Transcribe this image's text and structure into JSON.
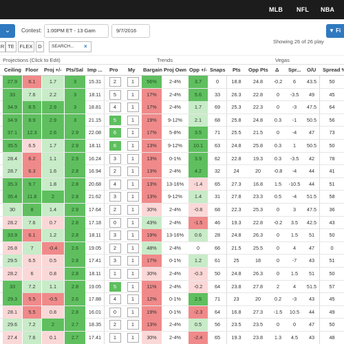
{
  "topnav": {
    "links": [
      "MLB",
      "NFL",
      "NBA"
    ]
  },
  "toolbar": {
    "contest_label": "Contest:",
    "contest_value": "1:00PM ET - 13 Gam",
    "date_value": "9/7/2016",
    "filter_label": "Fi"
  },
  "positions": [
    "R",
    "TE",
    "FLEX",
    "D"
  ],
  "search": {
    "placeholder": "SEARCH...",
    "clear": "×"
  },
  "showing_text": "Showing 26 of 26 play",
  "groups": {
    "projections": "Projections (Click to Edit)",
    "trends": "Trends",
    "vegas": "Vegas"
  },
  "columns": [
    "Ceiling",
    "Floor",
    "Proj +/-",
    "Pts/Sal",
    "Imp ...",
    "Pro",
    "My",
    "Bargain",
    "Proj Own",
    "Opp +/-",
    "Snaps",
    "Pts",
    "Opp Pts",
    "Δ",
    "Spr...",
    "O/U",
    "Spread %"
  ],
  "colors": {
    "green_dark": "#5fbf5f",
    "green_mid": "#8fd48f",
    "green_light": "#c8ebc8",
    "red_dark": "#f08a8a",
    "red_mid": "#f6b4b4",
    "red_light": "#fbd8d8",
    "accent_blue": "#2f79c0"
  },
  "rows": [
    {
      "ceil": "27.9",
      "floor": "6.1",
      "proj": "1.7",
      "ps": "3",
      "imp": "15.31",
      "pro": "2",
      "my": "1",
      "barg": "56%",
      "own": "2-4%",
      "opp": "3.7",
      "snaps": "0",
      "pts": "18.8",
      "oppp": "24.8",
      "d": "-0.2",
      "spr": "6",
      "ou": "43.5",
      "sp": "50",
      "c": [
        "g",
        "r",
        "lg",
        "g",
        "",
        "",
        "",
        "g",
        "",
        "g",
        "",
        "",
        "",
        "",
        "",
        "",
        ""
      ]
    },
    {
      "ceil": "33",
      "floor": "7.6",
      "proj": "2.2",
      "ps": "3",
      "imp": "18.11",
      "pro": "5",
      "my": "1",
      "barg": "17%",
      "own": "2-4%",
      "opp": "5.6",
      "snaps": "33",
      "pts": "26.3",
      "oppp": "22.8",
      "d": "0",
      "spr": "-3.5",
      "ou": "49",
      "sp": "45",
      "c": [
        "g",
        "lg",
        "lg",
        "g",
        "",
        "",
        "",
        "r",
        "",
        "g",
        "",
        "",
        "",
        "",
        "",
        "",
        ""
      ]
    },
    {
      "ceil": "34.9",
      "floor": "8.5",
      "proj": "2.9",
      "ps": "3",
      "imp": "18.81",
      "pro": "4",
      "my": "1",
      "barg": "17%",
      "own": "2-4%",
      "opp": "1.7",
      "snaps": "69",
      "pts": "25.3",
      "oppp": "22.3",
      "d": "0",
      "spr": "-3",
      "ou": "47.5",
      "sp": "64",
      "c": [
        "g",
        "g",
        "g",
        "g",
        "",
        "",
        "",
        "r",
        "",
        "lg",
        "",
        "",
        "",
        "",
        "",
        "",
        ""
      ]
    },
    {
      "ceil": "34.9",
      "floor": "8.9",
      "proj": "2.9",
      "ps": "3",
      "imp": "21.15",
      "pro": "5",
      "my": "1",
      "barg": "19%",
      "own": "9-12%",
      "opp": "2.1",
      "snaps": "68",
      "pts": "25.8",
      "oppp": "24.8",
      "d": "0.3",
      "spr": "-1",
      "ou": "50.5",
      "sp": "56",
      "c": [
        "g",
        "g",
        "g",
        "g",
        "",
        "g",
        "",
        "r",
        "",
        "lg",
        "",
        "",
        "",
        "",
        "",
        "",
        ""
      ]
    },
    {
      "ceil": "37.1",
      "floor": "12.3",
      "proj": "2.6",
      "ps": "2.9",
      "imp": "22.08",
      "pro": "6",
      "my": "1",
      "barg": "17%",
      "own": "5-8%",
      "opp": "3.5",
      "snaps": "71",
      "pts": "25.5",
      "oppp": "21.5",
      "d": "0",
      "spr": "-4",
      "ou": "47",
      "sp": "73",
      "c": [
        "g",
        "g",
        "g",
        "g",
        "",
        "g",
        "",
        "r",
        "",
        "g",
        "",
        "",
        "",
        "",
        "",
        "",
        ""
      ]
    },
    {
      "ceil": "35.5",
      "floor": "6.5",
      "proj": "1.7",
      "ps": "2.9",
      "imp": "18.11",
      "pro": "6",
      "my": "1",
      "barg": "13%",
      "own": "9-12%",
      "opp": "10.1",
      "snaps": "63",
      "pts": "24.8",
      "oppp": "25.8",
      "d": "0.3",
      "spr": "1",
      "ou": "50.5",
      "sp": "50",
      "c": [
        "g",
        "lr",
        "lg",
        "g",
        "",
        "g",
        "",
        "r",
        "",
        "g",
        "",
        "",
        "",
        "",
        "",
        "",
        ""
      ]
    },
    {
      "ceil": "28.4",
      "floor": "6.2",
      "proj": "1.1",
      "ps": "2.9",
      "imp": "16.24",
      "pro": "3",
      "my": "1",
      "barg": "13%",
      "own": "0-1%",
      "opp": "3.9",
      "snaps": "62",
      "pts": "22.8",
      "oppp": "19.3",
      "d": "0.3",
      "spr": "-3.5",
      "ou": "42",
      "sp": "78",
      "c": [
        "lg",
        "r",
        "lg",
        "g",
        "",
        "",
        "",
        "r",
        "",
        "g",
        "",
        "",
        "",
        "",
        "",
        "",
        ""
      ]
    },
    {
      "ceil": "28.7",
      "floor": "6.3",
      "proj": "1.6",
      "ps": "2.8",
      "imp": "16.94",
      "pro": "2",
      "my": "1",
      "barg": "13%",
      "own": "2-4%",
      "opp": "4.2",
      "snaps": "32",
      "pts": "24",
      "oppp": "20",
      "d": "-0.8",
      "spr": "-4",
      "ou": "44",
      "sp": "41",
      "c": [
        "lg",
        "r",
        "lg",
        "g",
        "",
        "",
        "",
        "r",
        "",
        "g",
        "",
        "",
        "",
        "",
        "",
        "",
        ""
      ]
    },
    {
      "ceil": "35.3",
      "floor": "9.7",
      "proj": "1.8",
      "ps": "2.8",
      "imp": "20.68",
      "pro": "4",
      "my": "1",
      "barg": "13%",
      "own": "13-16%",
      "opp": "-1.4",
      "snaps": "65",
      "pts": "27.3",
      "oppp": "16.8",
      "d": "1.5",
      "spr": "-10.5",
      "ou": "44",
      "sp": "51",
      "c": [
        "g",
        "g",
        "lg",
        "g",
        "",
        "",
        "",
        "r",
        "",
        "lr",
        "",
        "",
        "",
        "",
        "",
        "",
        ""
      ]
    },
    {
      "ceil": "35.4",
      "floor": "11.8",
      "proj": "2",
      "ps": "2.8",
      "imp": "21.62",
      "pro": "3",
      "my": "1",
      "barg": "13%",
      "own": "9-12%",
      "opp": "1.4",
      "snaps": "31",
      "pts": "27.8",
      "oppp": "23.3",
      "d": "0.5",
      "spr": "-4",
      "ou": "51.5",
      "sp": "58",
      "c": [
        "g",
        "g",
        "g",
        "g",
        "",
        "",
        "",
        "r",
        "",
        "lg",
        "",
        "",
        "",
        "",
        "",
        "",
        ""
      ]
    },
    {
      "ceil": "30",
      "floor": "8",
      "proj": "1.4",
      "ps": "2.9",
      "imp": "17.64",
      "pro": "2",
      "my": "1",
      "barg": "30%",
      "own": "2-4%",
      "opp": "-0.8",
      "snaps": "68",
      "pts": "22.3",
      "oppp": "25.3",
      "d": "0",
      "spr": "3",
      "ou": "47.5",
      "sp": "36",
      "c": [
        "lg",
        "g",
        "lg",
        "g",
        "",
        "",
        "",
        "lr",
        "",
        "lr",
        "",
        "",
        "",
        "",
        "",
        "",
        ""
      ]
    },
    {
      "ceil": "28.2",
      "floor": "7.6",
      "proj": "0.7",
      "ps": "2.8",
      "imp": "17.18",
      "pro": "0",
      "my": "1",
      "barg": "43%",
      "own": "2-4%",
      "opp": "-1.5",
      "snaps": "46",
      "pts": "19.3",
      "oppp": "22.8",
      "d": "-0.2",
      "spr": "3.5",
      "ou": "42.5",
      "sp": "43",
      "c": [
        "lr",
        "lg",
        "lr",
        "g",
        "",
        "",
        "",
        "lg",
        "",
        "r",
        "",
        "",
        "",
        "",
        "",
        "",
        ""
      ]
    },
    {
      "ceil": "33.9",
      "floor": "6.1",
      "proj": "1.2",
      "ps": "2.8",
      "imp": "18.11",
      "pro": "3",
      "my": "1",
      "barg": "19%",
      "own": "13-16%",
      "opp": "0.6",
      "snaps": "28",
      "pts": "24.8",
      "oppp": "26.3",
      "d": "0",
      "spr": "1.5",
      "ou": "51",
      "sp": "50",
      "c": [
        "g",
        "r",
        "lg",
        "g",
        "",
        "",
        "",
        "r",
        "",
        "lg",
        "",
        "",
        "",
        "",
        "",
        "",
        ""
      ]
    },
    {
      "ceil": "26.8",
      "floor": "7",
      "proj": "-0.4",
      "ps": "2.6",
      "imp": "19.05",
      "pro": "2",
      "my": "1",
      "barg": "48%",
      "own": "2-4%",
      "opp": "0",
      "snaps": "66",
      "pts": "21.5",
      "oppp": "25.5",
      "d": "0",
      "spr": "4",
      "ou": "47",
      "sp": "0",
      "c": [
        "lr",
        "lg",
        "r",
        "g",
        "",
        "",
        "",
        "lg",
        "",
        "",
        "",
        "",
        "",
        "",
        "",
        "",
        ""
      ]
    },
    {
      "ceil": "29.5",
      "floor": "6.5",
      "proj": "0.5",
      "ps": "2.8",
      "imp": "17.41",
      "pro": "3",
      "my": "1",
      "barg": "17%",
      "own": "0-1%",
      "opp": "1.2",
      "snaps": "61",
      "pts": "25",
      "oppp": "18",
      "d": "0",
      "spr": "-7",
      "ou": "43",
      "sp": "51",
      "c": [
        "lg",
        "lr",
        "lr",
        "g",
        "",
        "",
        "",
        "r",
        "",
        "lg",
        "",
        "",
        "",
        "",
        "",
        "",
        ""
      ]
    },
    {
      "ceil": "28.2",
      "floor": "6",
      "proj": "0.8",
      "ps": "2.8",
      "imp": "18.11",
      "pro": "1",
      "my": "1",
      "barg": "30%",
      "own": "2-4%",
      "opp": "-0.3",
      "snaps": "50",
      "pts": "24.8",
      "oppp": "26.3",
      "d": "0",
      "spr": "1.5",
      "ou": "51",
      "sp": "50",
      "c": [
        "lr",
        "lr",
        "lr",
        "g",
        "",
        "",
        "",
        "lr",
        "",
        "lr",
        "",
        "",
        "",
        "",
        "",
        "",
        ""
      ]
    },
    {
      "ceil": "33",
      "floor": "7.2",
      "proj": "1.1",
      "ps": "2.8",
      "imp": "19.05",
      "pro": "5",
      "my": "1",
      "barg": "11%",
      "own": "2-4%",
      "opp": "-0.2",
      "snaps": "64",
      "pts": "23.8",
      "oppp": "27.8",
      "d": "2",
      "spr": "4",
      "ou": "51.5",
      "sp": "57",
      "c": [
        "g",
        "lg",
        "lg",
        "g",
        "",
        "g",
        "",
        "r",
        "",
        "lr",
        "",
        "",
        "",
        "",
        "",
        "",
        ""
      ]
    },
    {
      "ceil": "29.3",
      "floor": "5.5",
      "proj": "-0.5",
      "ps": "2.6",
      "imp": "17.88",
      "pro": "4",
      "my": "1",
      "barg": "12%",
      "own": "0-1%",
      "opp": "2.5",
      "snaps": "71",
      "pts": "23",
      "oppp": "20",
      "d": "0.2",
      "spr": "-3",
      "ou": "43",
      "sp": "45",
      "c": [
        "g",
        "r",
        "r",
        "g",
        "",
        "",
        "",
        "r",
        "",
        "g",
        "",
        "",
        "",
        "",
        "",
        "",
        ""
      ]
    },
    {
      "ceil": "28.1",
      "floor": "5.5",
      "proj": "0.8",
      "ps": "2.8",
      "imp": "16.01",
      "pro": "0",
      "my": "1",
      "barg": "19%",
      "own": "0-1%",
      "opp": "-2.3",
      "snaps": "64",
      "pts": "16.8",
      "oppp": "27.3",
      "d": "-1.5",
      "spr": "10.5",
      "ou": "44",
      "sp": "49",
      "c": [
        "lr",
        "r",
        "lr",
        "g",
        "",
        "",
        "",
        "r",
        "",
        "r",
        "",
        "",
        "",
        "",
        "",
        "",
        ""
      ]
    },
    {
      "ceil": "29.6",
      "floor": "7.2",
      "proj": "2",
      "ps": "2.7",
      "imp": "18.35",
      "pro": "2",
      "my": "1",
      "barg": "13%",
      "own": "2-4%",
      "opp": "0.5",
      "snaps": "56",
      "pts": "23.5",
      "oppp": "23.5",
      "d": "0",
      "spr": "0",
      "ou": "47",
      "sp": "50",
      "c": [
        "lg",
        "lg",
        "g",
        "g",
        "",
        "",
        "",
        "r",
        "",
        "lg",
        "",
        "",
        "",
        "",
        "",
        "",
        ""
      ]
    },
    {
      "ceil": "27.4",
      "floor": "7.6",
      "proj": "0.1",
      "ps": "2.7",
      "imp": "17.41",
      "pro": "1",
      "my": "1",
      "barg": "30%",
      "own": "2-4%",
      "opp": "-2.4",
      "snaps": "65",
      "pts": "19.3",
      "oppp": "23.8",
      "d": "1.3",
      "spr": "4.5",
      "ou": "43",
      "sp": "48",
      "c": [
        "lr",
        "lg",
        "lr",
        "g",
        "",
        "",
        "",
        "lr",
        "",
        "r",
        "",
        "",
        "",
        "",
        "",
        "",
        ""
      ]
    }
  ]
}
